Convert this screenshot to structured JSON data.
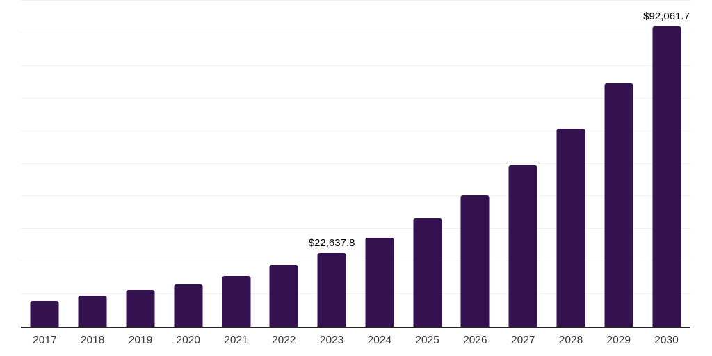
{
  "chart_data": {
    "type": "bar",
    "title": "",
    "xlabel": "",
    "ylabel": "",
    "categories": [
      "2017",
      "2018",
      "2019",
      "2020",
      "2021",
      "2022",
      "2023",
      "2024",
      "2025",
      "2026",
      "2027",
      "2028",
      "2029",
      "2030"
    ],
    "values": [
      7900,
      9500,
      11350,
      13100,
      15600,
      18950,
      22637.8,
      27350,
      33200,
      40300,
      49400,
      60800,
      74600,
      92061.7
    ],
    "data_labels": [
      {
        "category": "2023",
        "text": "$22,637.8"
      },
      {
        "category": "2030",
        "text": "$92,061.7"
      }
    ],
    "ylim": [
      0,
      100000
    ],
    "gridline_interval": 10000,
    "grid": true,
    "legend": false,
    "colors": {
      "bar": "#361150",
      "axis": "#262626",
      "gridline": "#f2f2f2",
      "data_label": "#000000",
      "tick_label": "#333333",
      "background": "#ffffff"
    }
  }
}
